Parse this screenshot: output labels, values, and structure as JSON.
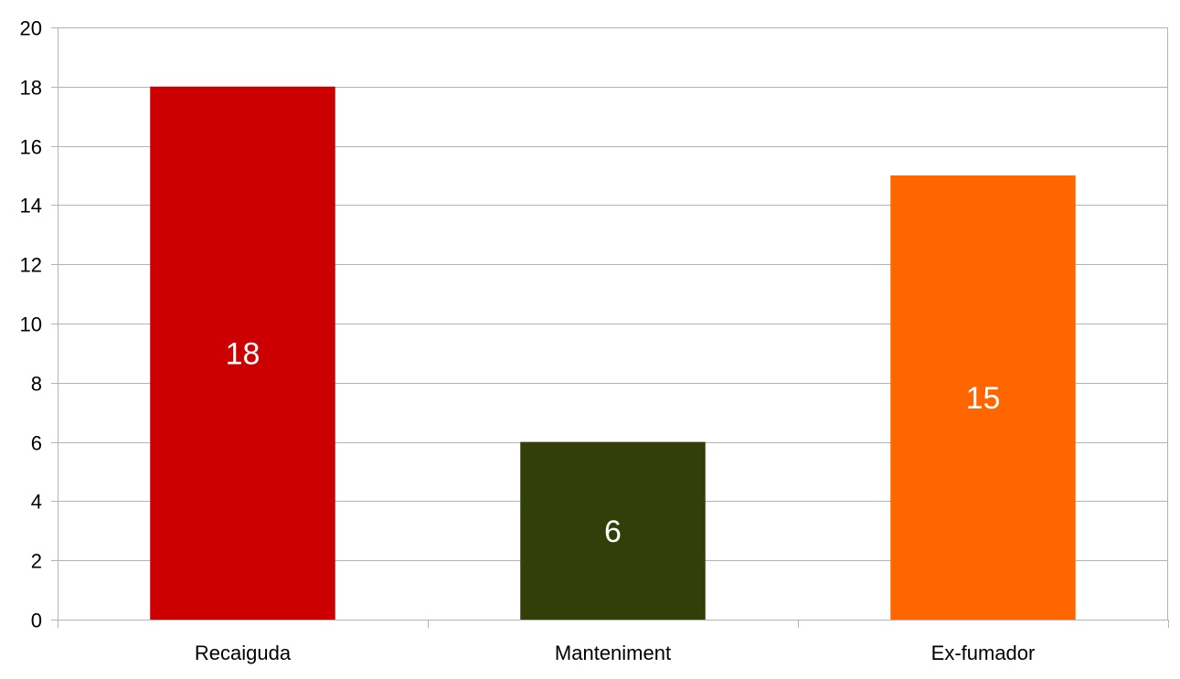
{
  "chart_data": {
    "type": "bar",
    "title": "",
    "xlabel": "",
    "ylabel": "",
    "categories": [
      "Recaiguda",
      "Manteniment",
      "Ex-fumador"
    ],
    "values": [
      18,
      6,
      15
    ],
    "colors": [
      "#cc0000",
      "#333f08",
      "#ff6600"
    ],
    "data_labels": [
      "18",
      "6",
      "15"
    ],
    "ylim": [
      0,
      20
    ],
    "yticks": [
      0,
      2,
      4,
      6,
      8,
      10,
      12,
      14,
      16,
      18,
      20
    ],
    "ytick_labels": [
      "0",
      "2",
      "4",
      "6",
      "8",
      "10",
      "12",
      "14",
      "16",
      "18",
      "20"
    ],
    "grid": true,
    "legend": "none",
    "gridline_color": "#b3b3b3",
    "axis_color": "#b3b3b3",
    "data_label_color": "#ffffff"
  }
}
